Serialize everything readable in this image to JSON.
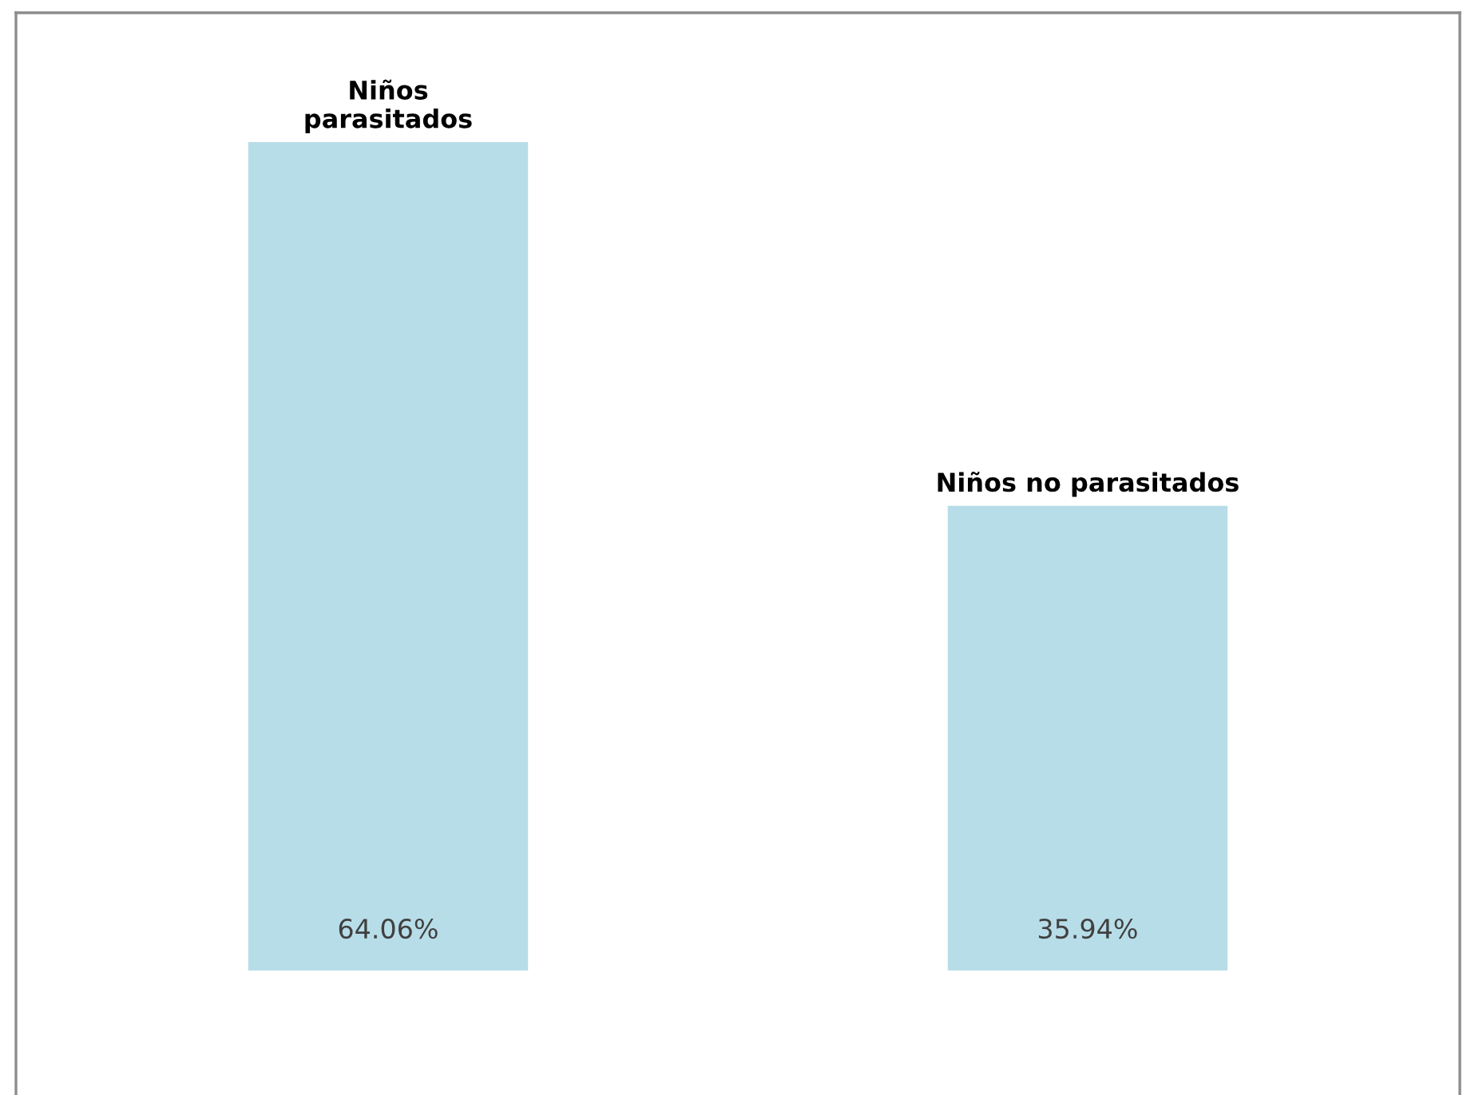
{
  "chart_data": {
    "type": "bar",
    "categories": [
      "Niños\nparasitados",
      "Niños no parasitados"
    ],
    "values": [
      64.06,
      35.94
    ],
    "value_labels": [
      "64.06%",
      "35.94%"
    ],
    "color": "#b7dde8"
  }
}
